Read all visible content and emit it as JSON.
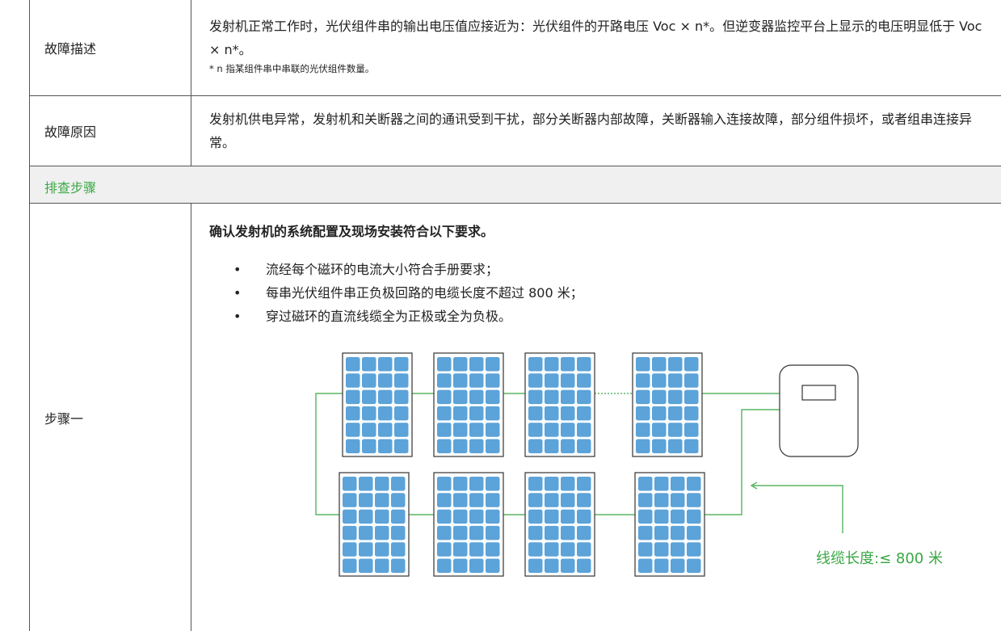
{
  "rows": [
    {
      "label": "故障描述",
      "text": "发射机正常工作时，光伏组件串的输出电压值应接近为：光伏组件的开路电压 Voc × n*。但逆变器监控平台上显示的电压明显低于 Voc × n*。",
      "note": "* n 指某组件串中串联的光伏组件数量。"
    },
    {
      "label": "故障原因",
      "text": "发射机供电异常，发射机和关断器之间的通讯受到干扰，部分关断器内部故障，关断器输入连接故障，部分组件损坏，或者组串连接异常。"
    }
  ],
  "section": "排查步骤",
  "step": {
    "label": "步骤一",
    "heading": "确认发射机的系统配置及现场安装符合以下要求。",
    "bullets": [
      "流经每个磁环的电流大小符合手册要求；",
      "每串光伏组件串正负极回路的电缆长度不超过 800 米；",
      "穿过磁环的直流线缆全为正极或全为负极。"
    ],
    "diagram_label": "线缆长度:≤ 800 米"
  }
}
